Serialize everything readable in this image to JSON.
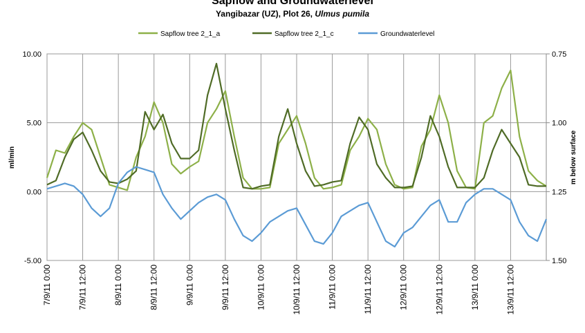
{
  "chart_data": {
    "type": "line",
    "title": "Sapflow and Groundwaterlevel",
    "subtitle": "Yangibazar (UZ), Plot 26, ",
    "subtitle_species": "Ulmus pumila",
    "ylabel": "ml/min",
    "y2label": "m below surface",
    "x": [
      0,
      3,
      6,
      9,
      12,
      15,
      18,
      21,
      24,
      27,
      30,
      33,
      36,
      39,
      42,
      45,
      48,
      51,
      54,
      57,
      60,
      63,
      66,
      69,
      72,
      75,
      78,
      81,
      84,
      87,
      90,
      93,
      96,
      99,
      102,
      105,
      108,
      111,
      114,
      117,
      120,
      123,
      126,
      129,
      132,
      135,
      138,
      141,
      144,
      147,
      150,
      153,
      156,
      159,
      162,
      165,
      168
    ],
    "xlim": [
      0,
      168
    ],
    "xticks": [
      {
        "value": 0,
        "label": "7/9/11 0:00"
      },
      {
        "value": 12,
        "label": "7/9/11 12:00"
      },
      {
        "value": 24,
        "label": "8/9/11 0:00"
      },
      {
        "value": 36,
        "label": "8/9/11 12:00"
      },
      {
        "value": 48,
        "label": "9/9/11 0:00"
      },
      {
        "value": 60,
        "label": "9/9/11 12:00"
      },
      {
        "value": 72,
        "label": "10/9/11 0:00"
      },
      {
        "value": 84,
        "label": "10/9/11 12:00"
      },
      {
        "value": 96,
        "label": "11/9/11 0:00"
      },
      {
        "value": 108,
        "label": "11/9/11 12:00"
      },
      {
        "value": 120,
        "label": "12/9/11 0:00"
      },
      {
        "value": 132,
        "label": "12/9/11 12:00"
      },
      {
        "value": 144,
        "label": "13/9/11 0:00"
      },
      {
        "value": 156,
        "label": "13/9/11 12:00"
      }
    ],
    "ylim": [
      -5,
      10
    ],
    "yticks": [
      {
        "value": -5,
        "label": "-5.00"
      },
      {
        "value": 0,
        "label": "0.00"
      },
      {
        "value": 5,
        "label": "5.00"
      },
      {
        "value": 10,
        "label": "10.00"
      }
    ],
    "y2lim": [
      1.5,
      0.75
    ],
    "y2ticks": [
      {
        "value": 0.75,
        "label": "0.75"
      },
      {
        "value": 1,
        "label": "1.00"
      },
      {
        "value": 1.25,
        "label": "1.25"
      },
      {
        "value": 1.5,
        "label": "1.50"
      }
    ],
    "grid": true,
    "legend": "top",
    "series": [
      {
        "name": "Sapflow tree 2_1_a",
        "color": "#8db048",
        "values": [
          1.0,
          3.0,
          2.8,
          4.0,
          5.0,
          4.5,
          2.5,
          0.5,
          0.3,
          0.1,
          2.5,
          4.0,
          6.5,
          5.0,
          2.0,
          1.3,
          1.8,
          2.2,
          5.0,
          6.0,
          7.3,
          4.0,
          1.0,
          0.2,
          0.2,
          0.3,
          3.5,
          4.5,
          5.5,
          3.5,
          1.0,
          0.2,
          0.3,
          0.5,
          3.0,
          4.0,
          5.3,
          4.5,
          2.0,
          0.5,
          0.2,
          0.3,
          3.3,
          4.5,
          7.0,
          5.0,
          1.5,
          0.3,
          0.2,
          5.0,
          5.5,
          7.5,
          8.8,
          4.0,
          1.5,
          0.8,
          0.4
        ]
      },
      {
        "name": "Sapflow tree 2_1_c",
        "color": "#4f6b26",
        "values": [
          0.5,
          0.8,
          2.5,
          3.8,
          4.3,
          3.0,
          1.5,
          0.7,
          0.6,
          0.9,
          1.5,
          5.8,
          4.5,
          5.6,
          3.5,
          2.4,
          2.4,
          3.0,
          7.0,
          9.3,
          6.0,
          3.0,
          0.3,
          0.2,
          0.4,
          0.5,
          4.0,
          6.0,
          3.5,
          1.5,
          0.4,
          0.5,
          0.7,
          0.8,
          3.5,
          5.4,
          4.5,
          2.0,
          1.0,
          0.3,
          0.3,
          0.4,
          2.5,
          5.5,
          4.0,
          1.8,
          0.3,
          0.3,
          0.3,
          1.0,
          3.0,
          4.5,
          3.5,
          2.5,
          0.5,
          0.4,
          0.4
        ]
      },
      {
        "name": "Groundwaterlevel",
        "color": "#5b9bd5",
        "axis": "y2",
        "values": [
          1.24,
          1.23,
          1.22,
          1.23,
          1.26,
          1.31,
          1.34,
          1.31,
          1.22,
          1.18,
          1.16,
          1.17,
          1.18,
          1.26,
          1.31,
          1.35,
          1.32,
          1.29,
          1.27,
          1.26,
          1.28,
          1.35,
          1.41,
          1.43,
          1.4,
          1.36,
          1.34,
          1.32,
          1.31,
          1.37,
          1.43,
          1.44,
          1.4,
          1.34,
          1.32,
          1.3,
          1.29,
          1.36,
          1.43,
          1.45,
          1.4,
          1.38,
          1.34,
          1.3,
          1.28,
          1.36,
          1.36,
          1.29,
          1.26,
          1.24,
          1.24,
          1.26,
          1.28,
          1.36,
          1.41,
          1.43,
          1.35
        ]
      }
    ]
  }
}
